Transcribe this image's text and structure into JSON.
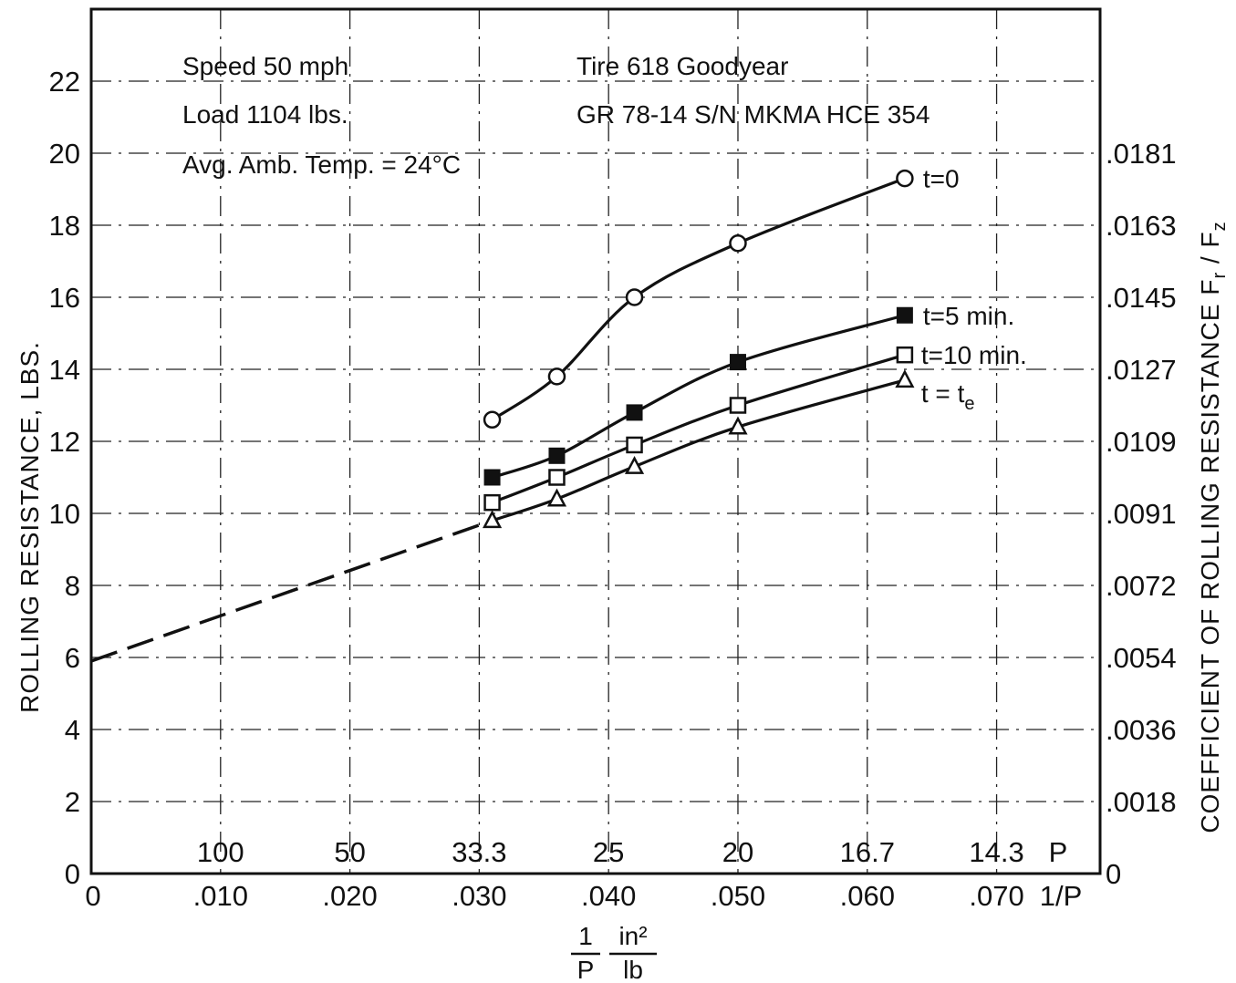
{
  "chart_data": {
    "type": "line",
    "annotations": {
      "left": [
        "Speed 50 mph",
        "Load 1104 lbs.",
        "Avg. Amb. Temp. = 24°C"
      ],
      "right": [
        "Tire 618 Goodyear",
        "GR 78-14 S/N MKMA HCE 354"
      ]
    },
    "ylabel": "ROLLING RESISTANCE, LBS.",
    "ylabel_right": "COEFFICIENT OF ROLLING RESISTANCE F",
    "ylabel_right_sub1": "r",
    "ylabel_right_sub2": "z",
    "ylabel_right_sep": " / F",
    "xlabel_num": "1",
    "xlabel_den": "P",
    "xlabel_unit_num": "in²",
    "xlabel_unit_den": "lb",
    "xlim": [
      0,
      0.078
    ],
    "ylim": [
      0,
      24
    ],
    "grid": "dash-dot",
    "y_ticks": [
      "0",
      "2",
      "4",
      "6",
      "8",
      "10",
      "12",
      "14",
      "16",
      "18",
      "20",
      "22"
    ],
    "y_tick_values": [
      0,
      2,
      4,
      6,
      8,
      10,
      12,
      14,
      16,
      18,
      20,
      22
    ],
    "x_ticks": [
      ".010",
      ".020",
      ".030",
      ".040",
      ".050",
      ".060",
      ".070"
    ],
    "x_tick_values": [
      0.01,
      0.02,
      0.03,
      0.04,
      0.05,
      0.06,
      0.07
    ],
    "x_origin_label": "0",
    "x_axis_name": "1/P",
    "p_ticks": [
      "100",
      "50",
      "33.3",
      "25",
      "20",
      "16.7",
      "14.3"
    ],
    "p_tick_values": [
      0.01,
      0.02,
      0.03,
      0.04,
      0.05,
      0.06,
      0.07
    ],
    "p_axis_name": "P",
    "right_ticks": [
      "0",
      ".0018",
      ".0036",
      ".0054",
      ".0072",
      ".0091",
      ".0109",
      ".0127",
      ".0145",
      ".0163",
      ".0181"
    ],
    "right_tick_values": [
      0,
      2,
      4,
      6,
      8,
      10,
      12,
      14,
      16,
      18,
      20
    ],
    "series": [
      {
        "name": "t=0",
        "marker": "circle-open",
        "x": [
          0.031,
          0.036,
          0.042,
          0.05,
          0.0629
        ],
        "y": [
          12.6,
          13.8,
          16.0,
          17.5,
          19.3
        ]
      },
      {
        "name": "t=5 min.",
        "marker": "square-filled",
        "x": [
          0.031,
          0.036,
          0.042,
          0.05,
          0.0629
        ],
        "y": [
          11.0,
          11.6,
          12.8,
          14.2,
          15.5
        ]
      },
      {
        "name": "t=10 min.",
        "marker": "square-open",
        "x": [
          0.031,
          0.036,
          0.042,
          0.05,
          0.0629
        ],
        "y": [
          10.3,
          11.0,
          11.9,
          13.0,
          14.4
        ]
      },
      {
        "name_prefix": "t = t",
        "name_sub": "e",
        "marker": "triangle-open",
        "x": [
          0.031,
          0.036,
          0.042,
          0.05,
          0.0629
        ],
        "y": [
          9.8,
          10.4,
          11.3,
          12.4,
          13.7
        ]
      }
    ],
    "extrapolation": {
      "style": "dashed",
      "x": [
        0,
        0.031
      ],
      "y": [
        5.9,
        9.8
      ]
    }
  }
}
